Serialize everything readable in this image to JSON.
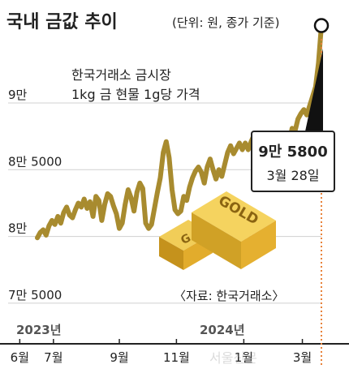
{
  "chart_data": {
    "type": "line",
    "title": "국내 금값 추이",
    "subtitle": "(단위: 원, 종가 기준)",
    "annotation": [
      "한국거래소 금시장",
      "1kg 금 현물 1g당 가격"
    ],
    "source": "〈자료: 한국거래소〉",
    "callout": {
      "value": "9만 5800",
      "date": "3월 28일",
      "y": 95800
    },
    "y_ticks": [
      {
        "label": "9만",
        "value": 90000
      },
      {
        "label": "8만 5000",
        "value": 85000
      },
      {
        "label": "8만",
        "value": 80000
      },
      {
        "label": "7만 5000",
        "value": 75000
      }
    ],
    "year_labels": [
      "2023년",
      "2024년"
    ],
    "x_ticks": [
      "6월",
      "7월",
      "9월",
      "11월",
      "1월",
      "3월"
    ],
    "ylim": [
      70500,
      96500
    ],
    "grid": true,
    "watermark": "서울신문",
    "gold_bar_text": [
      "GOLD",
      "G"
    ],
    "colors": {
      "line": "#a88b2f",
      "text": "#222222",
      "grid": "#d0d0d0",
      "axis": "#222222",
      "dotted": "#e8823a",
      "gold": "#d9a931"
    },
    "series": [
      {
        "values": [
          79900,
          80300,
          80500,
          80100,
          80800,
          81200,
          80900,
          81500,
          81000,
          81800,
          82200,
          81600,
          81400,
          82000,
          82500,
          82200,
          82800,
          82100,
          82600,
          81500,
          83000,
          82700,
          81200,
          82400,
          83200,
          83000,
          82300,
          81700,
          80600,
          81000,
          82400,
          83500,
          82900,
          81900,
          83300,
          84000,
          83600,
          81000,
          80600,
          80900,
          82100,
          83300,
          84400,
          86300,
          87100,
          85900,
          83500,
          82000,
          81700,
          81900,
          83000,
          82700,
          83700,
          84400,
          84900,
          85200,
          84800,
          84000,
          85200,
          85800,
          85000,
          84300,
          85000,
          84500,
          85400,
          86300,
          86800,
          86200,
          86600,
          87000,
          86500,
          87000,
          86500,
          87100,
          87600,
          87000,
          86400,
          86900,
          86300,
          86800,
          87300,
          86800,
          86100,
          86600,
          85900,
          86500,
          87100,
          88100,
          87900,
          88800,
          89200,
          89500,
          89100,
          89800,
          90500,
          91200,
          93000,
          95800
        ]
      }
    ]
  }
}
